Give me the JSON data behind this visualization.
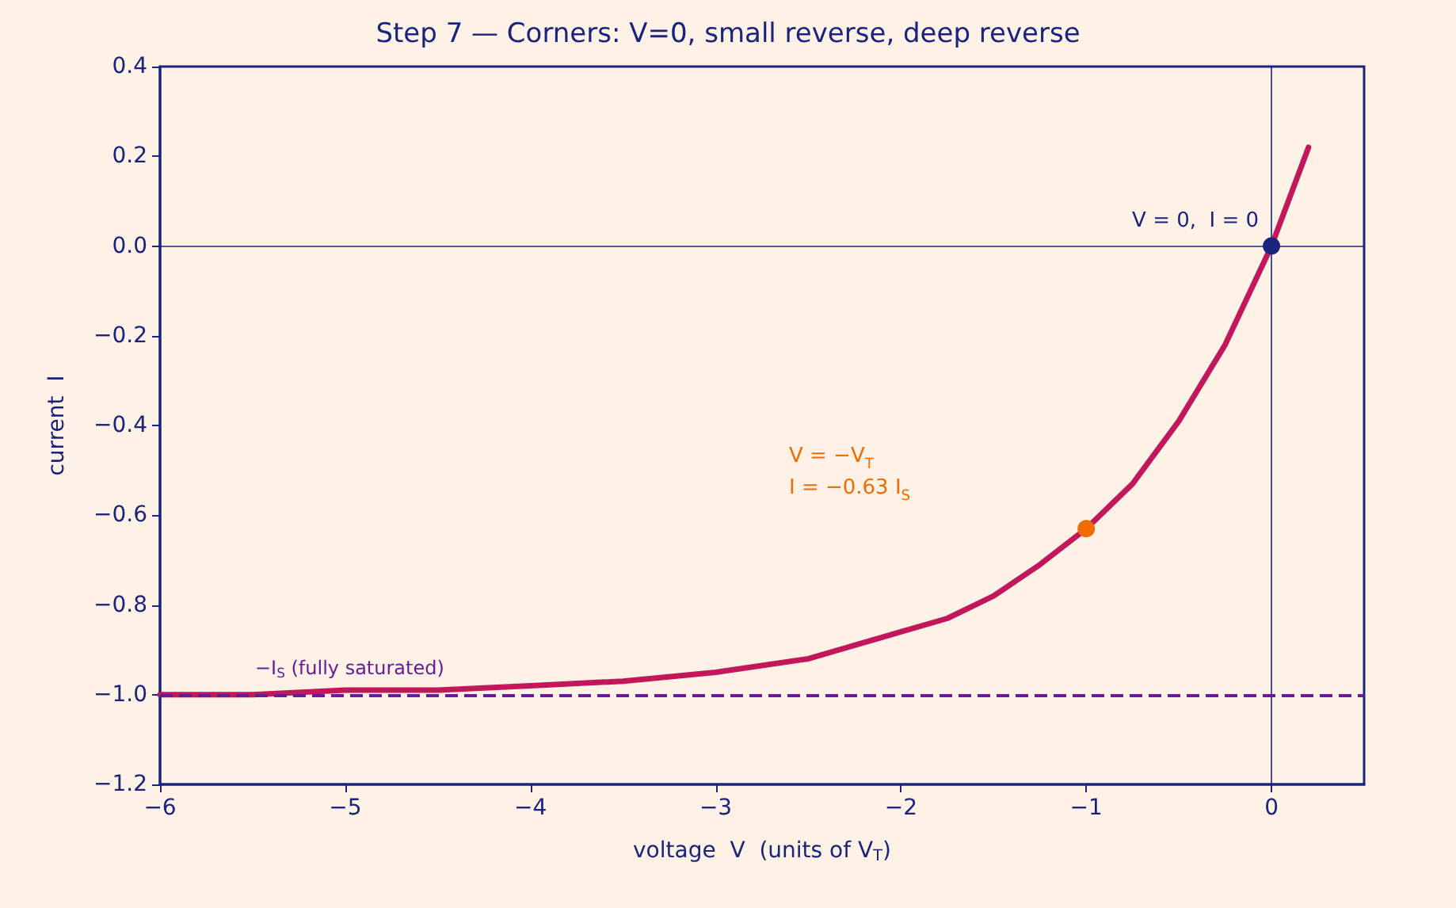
{
  "chart_data": {
    "type": "line",
    "title": "Step 7 — Corners: V=0, small reverse, deep reverse",
    "xlabel": "voltage  V  (units of V$_{T}$)",
    "ylabel": "current  I",
    "xlim": [
      -6,
      0.5
    ],
    "xticks": [
      {
        "value": -6,
        "label": "−6"
      },
      {
        "value": -5,
        "label": "−5"
      },
      {
        "value": -4,
        "label": "−4"
      },
      {
        "value": -3,
        "label": "−3"
      },
      {
        "value": -2,
        "label": "−2"
      },
      {
        "value": -1,
        "label": "−1"
      },
      {
        "value": 0,
        "label": "0"
      }
    ],
    "ylim": [
      -1.2,
      0.4
    ],
    "yticks": [
      {
        "value": -1.2,
        "label": "−1.2"
      },
      {
        "value": -1,
        "label": "−1.0"
      },
      {
        "value": -0.8,
        "label": "−0.8"
      },
      {
        "value": -0.6,
        "label": "−0.6"
      },
      {
        "value": -0.4,
        "label": "−0.4"
      },
      {
        "value": -0.2,
        "label": "−0.2"
      },
      {
        "value": 0,
        "label": "0.0"
      },
      {
        "value": 0.2,
        "label": "0.2"
      },
      {
        "value": 0.4,
        "label": "0.4"
      }
    ],
    "grid": false,
    "series": [
      {
        "color": "#c2185b",
        "marker": "none",
        "x": [
          -6,
          -5.5,
          -5,
          -4.5,
          -4,
          -3.5,
          -3,
          -2.5,
          -2,
          -1.75,
          -1.5,
          -1.25,
          -1,
          -0.75,
          -0.5,
          -0.25,
          0,
          0.1,
          0.2
        ],
        "values": [
          -1.0,
          -1.0,
          -0.99,
          -0.99,
          -0.98,
          -0.97,
          -0.95,
          -0.92,
          -0.86,
          -0.83,
          -0.78,
          -0.71,
          -0.63,
          -0.53,
          -0.39,
          -0.22,
          0,
          0.11,
          0.22
        ]
      },
      {
        "type": "scatter",
        "color": "#1a237e",
        "marker": "circle",
        "x": [
          0
        ],
        "values": [
          0
        ]
      },
      {
        "type": "scatter",
        "color": "#ef6c00",
        "marker": "circle",
        "x": [
          -1
        ],
        "values": [
          -0.63
        ]
      }
    ],
    "ref_lines": [
      {
        "axis": "x",
        "value": 0,
        "color": "#1a237e",
        "line_style": "solid"
      },
      {
        "axis": "y",
        "value": 0,
        "color": "#1a237e",
        "line_style": "solid"
      },
      {
        "axis": "y",
        "value": -1,
        "color": "#6a1b9a",
        "line_style": "dashed",
        "label": "−I$_{S}$ (fully saturated)"
      }
    ],
    "annotations": [
      {
        "text": "V = 0,  I = 0",
        "x": 0,
        "y": 0
      },
      "V = −V$_{T}$\nI = −0.63 I$_{S}$"
    ]
  }
}
